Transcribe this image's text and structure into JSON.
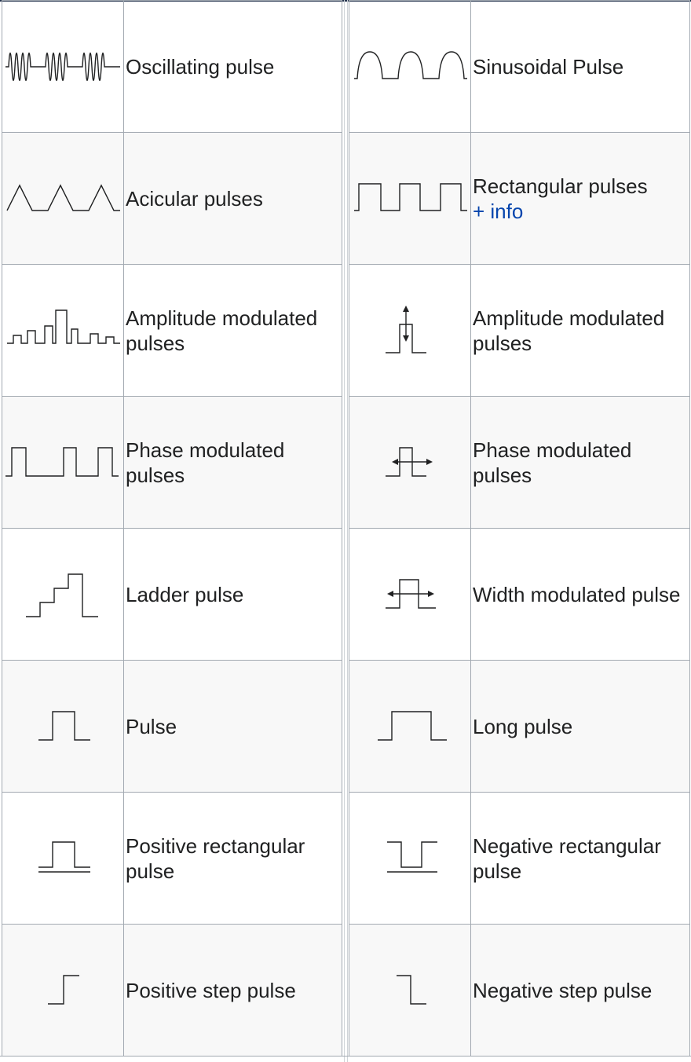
{
  "left_column": [
    {
      "icon": "oscillating-pulse-icon",
      "label": "Oscillating pulse"
    },
    {
      "icon": "acicular-pulses-icon",
      "label": "Acicular pulses"
    },
    {
      "icon": "amplitude-modulated-pulses-icon",
      "label": "Amplitude modulated pulses"
    },
    {
      "icon": "phase-modulated-pulses-icon",
      "label": "Phase modulated pulses"
    },
    {
      "icon": "ladder-pulse-icon",
      "label": "Ladder pulse"
    },
    {
      "icon": "pulse-icon",
      "label": "Pulse"
    },
    {
      "icon": "positive-rectangular-pulse-icon",
      "label": "Positive rectangular pulse"
    },
    {
      "icon": "positive-step-pulse-icon",
      "label": "Positive step pulse"
    }
  ],
  "right_column": [
    {
      "icon": "sinusoidal-pulse-icon",
      "label": "Sinusoidal Pulse"
    },
    {
      "icon": "rectangular-pulses-icon",
      "label": "Rectangular pulses",
      "link": "+ info"
    },
    {
      "icon": "amplitude-modulated-arrow-icon",
      "label": "Amplitude modulated pulses"
    },
    {
      "icon": "phase-modulated-arrow-icon",
      "label": "Phase modulated pulses"
    },
    {
      "icon": "width-modulated-pulse-icon",
      "label": "Width modulated pulse"
    },
    {
      "icon": "long-pulse-icon",
      "label": "Long pulse"
    },
    {
      "icon": "negative-rectangular-pulse-icon",
      "label": "Negative rectangular pulse"
    },
    {
      "icon": "negative-step-pulse-icon",
      "label": "Negative step pulse"
    }
  ],
  "colors": {
    "border": "#a2a9b1",
    "alt_row": "#f8f8f8",
    "link": "#0645ad",
    "stroke": "#202122"
  }
}
